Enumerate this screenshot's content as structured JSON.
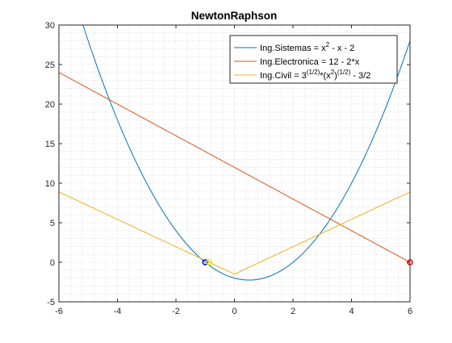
{
  "chart_data": {
    "type": "line",
    "title": "NewtonRaphson",
    "xlabel": "",
    "ylabel": "",
    "xlim": [
      -6,
      6
    ],
    "ylim": [
      -5,
      30
    ],
    "xticks": [
      -6,
      -4,
      -2,
      0,
      2,
      4,
      6
    ],
    "yticks": [
      -5,
      0,
      5,
      10,
      15,
      20,
      25,
      30
    ],
    "grid": "minor-dotted",
    "legend_position": "top-right",
    "series": [
      {
        "name": "Ing.Sistemas = x2 - x - 2",
        "legend": {
          "pre": "Ing.Sistemas = x",
          "sup": "2",
          "post": " - x - 2"
        },
        "color": "#0072bd",
        "expression": "x^2 - x - 2",
        "marker": {
          "x": -1,
          "y": 0,
          "color": "#0000ff"
        }
      },
      {
        "name": "Ing.Electronica = 12 - 2*x",
        "legend": {
          "pre": "Ing.Electronica = 12 - 2*x"
        },
        "color": "#d95319",
        "expression": "12 - 2*x",
        "marker": {
          "x": 6,
          "y": 0,
          "color": "#e00000"
        }
      },
      {
        "name": "Ing.Civil = 3(1/2)*(x2)(1/2) - 3/2",
        "legend": {
          "pre": "Ing.Civil = 3",
          "sup1": "(1/2)",
          "mid": "*(x",
          "sup2": "2",
          "mid2": ")",
          "sup3": "(1/2)",
          "post": " - 3/2"
        },
        "color": "#edb120",
        "expression": "sqrt(3)*|x| - 3/2",
        "marker": {
          "x": -0.866,
          "y": 0,
          "color": "#e6e600"
        }
      }
    ]
  }
}
